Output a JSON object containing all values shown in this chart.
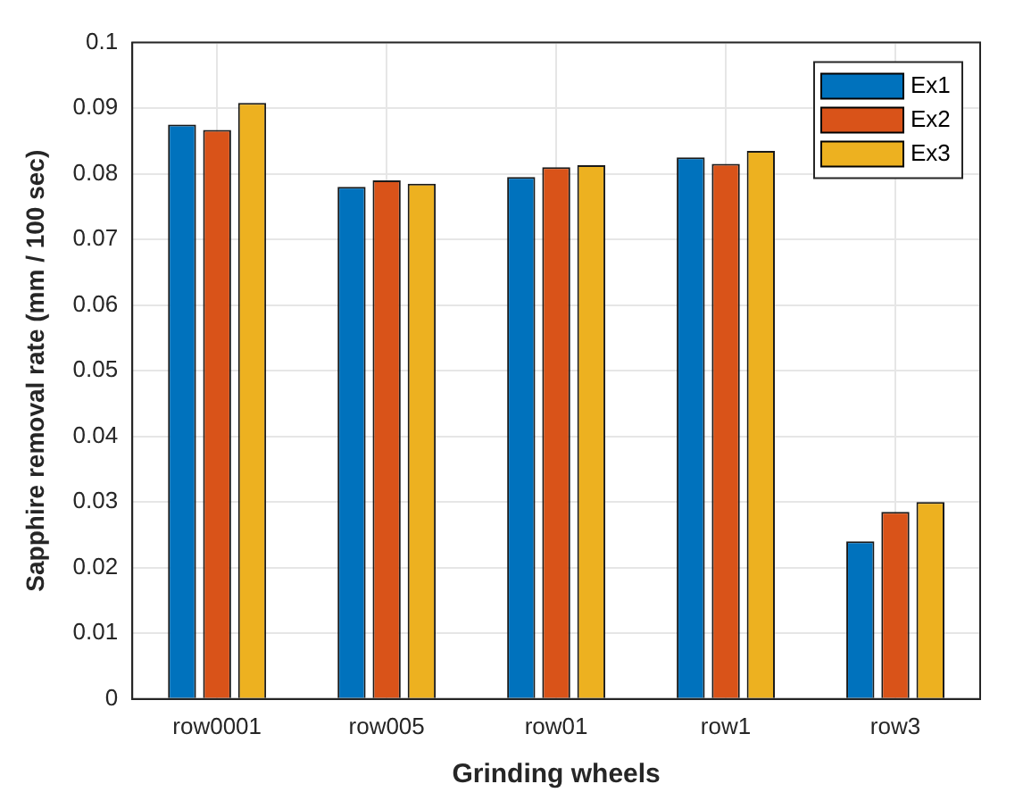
{
  "chart_data": {
    "type": "bar",
    "xlabel": "Grinding wheels",
    "ylabel": "Sapphire removal rate (mm / 100 sec)",
    "categories": [
      "row0001",
      "row005",
      "row01",
      "row1",
      "row3"
    ],
    "series": [
      {
        "name": "Ex1",
        "color": "#0072bd",
        "values": [
          0.0875,
          0.078,
          0.0795,
          0.0825,
          0.024
        ]
      },
      {
        "name": "Ex2",
        "color": "#d95319",
        "values": [
          0.0867,
          0.079,
          0.081,
          0.0815,
          0.0285
        ]
      },
      {
        "name": "Ex3",
        "color": "#edb120",
        "values": [
          0.0908,
          0.0785,
          0.0813,
          0.0835,
          0.03
        ]
      }
    ],
    "ylim": [
      0,
      0.1
    ],
    "yticks": [
      0,
      0.01,
      0.02,
      0.03,
      0.04,
      0.05,
      0.06,
      0.07,
      0.08,
      0.09,
      0.1
    ],
    "grid": true,
    "legend": "top right"
  }
}
